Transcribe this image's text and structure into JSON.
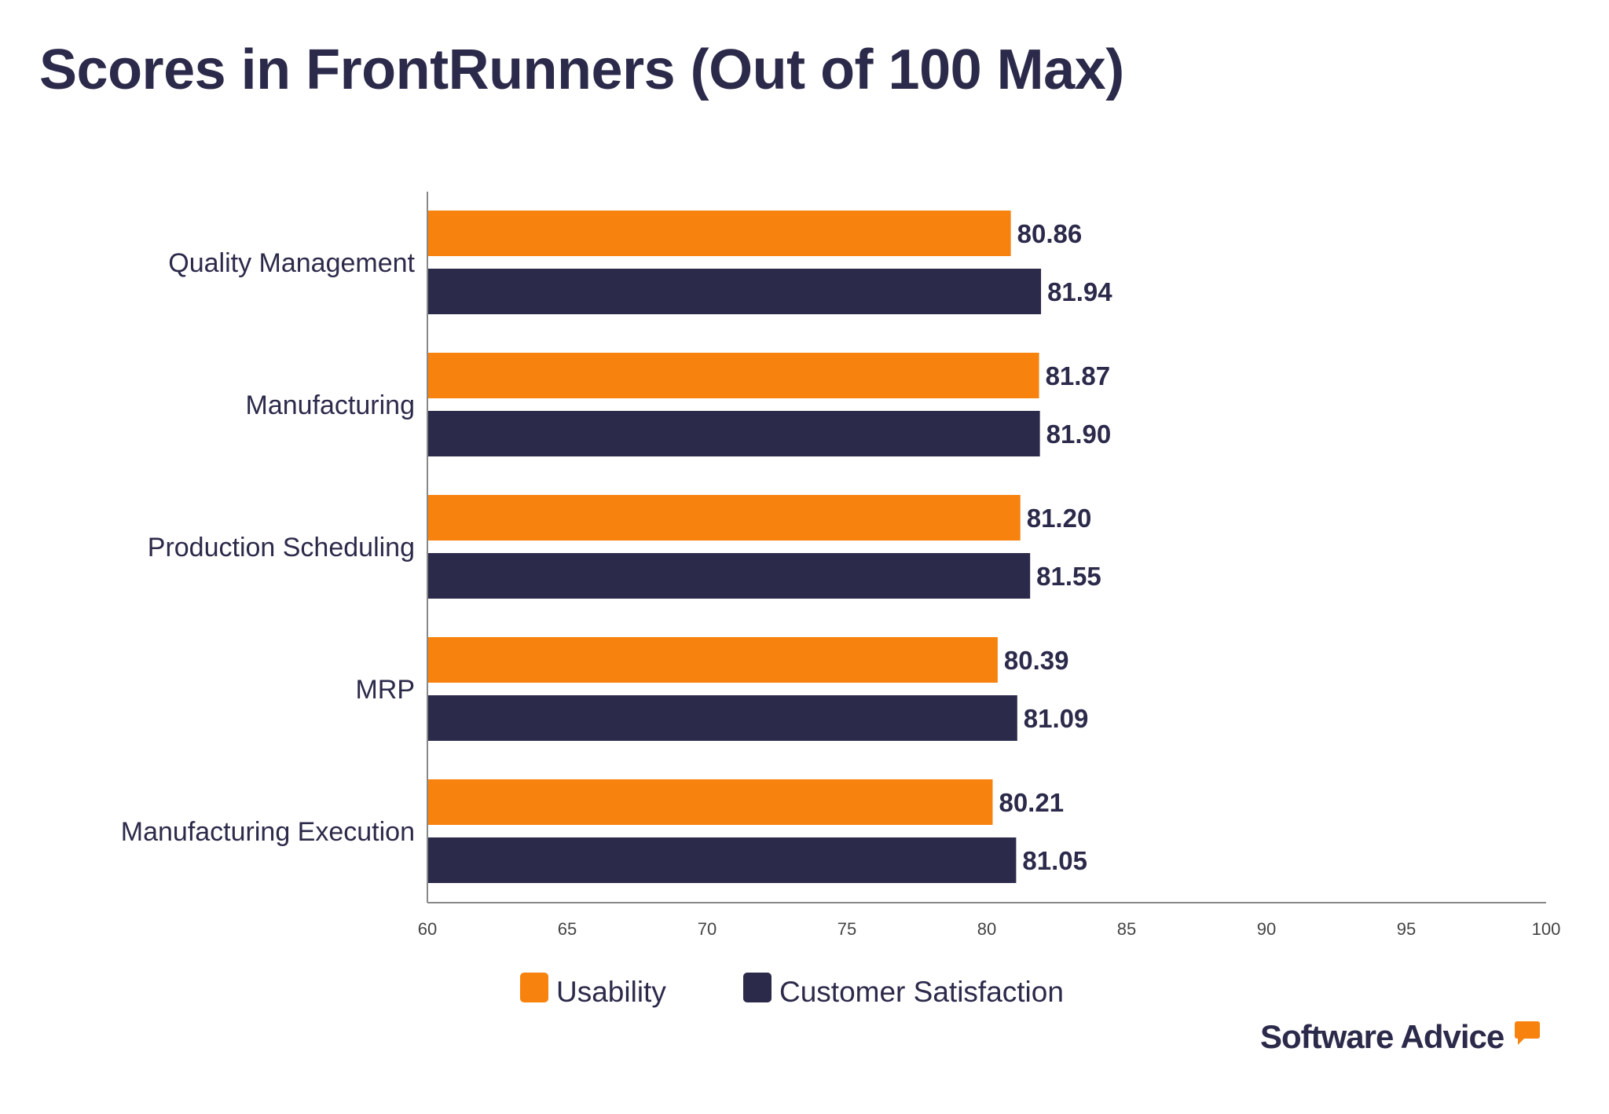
{
  "chart_data": {
    "type": "bar",
    "orientation": "horizontal",
    "title": "Scores in FrontRunners (Out of 100 Max)",
    "categories": [
      "Quality Management",
      "Manufacturing",
      "Production Scheduling",
      "MRP",
      "Manufacturing Execution"
    ],
    "series": [
      {
        "name": "Usability",
        "color": "#f7820d",
        "values": [
          80.86,
          81.87,
          81.2,
          80.39,
          80.21
        ],
        "labels": [
          "80.86",
          "81.87",
          "81.20",
          "80.39",
          "80.21"
        ]
      },
      {
        "name": "Customer Satisfaction",
        "color": "#2c2a4a",
        "values": [
          81.94,
          81.9,
          81.55,
          81.09,
          81.05
        ],
        "labels": [
          "81.94",
          "81.90",
          "81.55",
          "81.09",
          "81.05"
        ]
      }
    ],
    "xlim": [
      60,
      100
    ],
    "xticks": [
      "60",
      "65",
      "70",
      "75",
      "80",
      "85",
      "90",
      "95",
      "100"
    ],
    "grid": false,
    "legend": "bottom"
  },
  "logo": "Software Advice"
}
